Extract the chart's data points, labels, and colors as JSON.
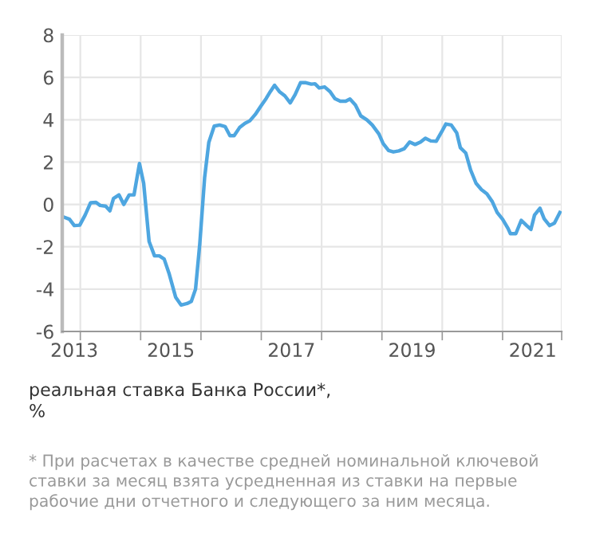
{
  "chart_data": {
    "type": "line",
    "ylabel": "реальная ставка Банка России*,\n%",
    "annotations": [
      "* При расчетах в качестве средней номинальной ключевой ставки за месяц взята усредненная из ставки на первые рабочие дни отчетного и следующего за ним месяца."
    ],
    "x": [
      2013.21,
      2013.32,
      2013.4,
      2013.49,
      2013.58,
      2013.67,
      2013.76,
      2013.83,
      2013.92,
      2013.99,
      2014.05,
      2014.14,
      2014.22,
      2014.31,
      2014.39,
      2014.48,
      2014.55,
      2014.64,
      2014.73,
      2014.81,
      2014.89,
      2014.97,
      2015.08,
      2015.17,
      2015.27,
      2015.34,
      2015.41,
      2015.48,
      2015.56,
      2015.63,
      2015.72,
      2015.81,
      2015.9,
      2015.98,
      2016.05,
      2016.14,
      2016.23,
      2016.31,
      2016.4,
      2016.49,
      2016.58,
      2016.65,
      2016.72,
      2016.8,
      2016.89,
      2016.98,
      2017.06,
      2017.15,
      2017.24,
      2017.33,
      2017.39,
      2017.46,
      2017.55,
      2017.64,
      2017.72,
      2017.81,
      2017.9,
      2017.97,
      2018.06,
      2018.15,
      2018.25,
      2018.34,
      2018.45,
      2018.52,
      2018.61,
      2018.69,
      2018.78,
      2018.87,
      2018.96,
      2019.05,
      2019.14,
      2019.22,
      2019.31,
      2019.4,
      2019.49,
      2019.56,
      2019.65,
      2019.74,
      2019.8,
      2019.89,
      2019.97,
      2020.06,
      2020.15,
      2020.24,
      2020.33,
      2020.41,
      2020.5,
      2020.59,
      2020.63,
      2020.72,
      2020.81,
      2020.9,
      2020.97,
      2021.03,
      2021.12,
      2021.19,
      2021.28,
      2021.36,
      2021.45
    ],
    "series": [
      {
        "color": "#4ea6e0",
        "values": [
          -0.58,
          -0.7,
          -1.0,
          -0.98,
          -0.5,
          0.08,
          0.1,
          -0.05,
          -0.08,
          -0.3,
          0.28,
          0.45,
          0.0,
          0.45,
          0.45,
          1.93,
          1.0,
          -1.75,
          -2.43,
          -2.43,
          -2.58,
          -3.25,
          -4.38,
          -4.75,
          -4.68,
          -4.58,
          -4.0,
          -1.88,
          1.25,
          2.93,
          3.7,
          3.75,
          3.68,
          3.25,
          3.25,
          3.63,
          3.83,
          3.95,
          4.25,
          4.63,
          5.0,
          5.33,
          5.63,
          5.33,
          5.13,
          4.8,
          5.18,
          5.75,
          5.75,
          5.68,
          5.7,
          5.5,
          5.55,
          5.33,
          5.0,
          4.88,
          4.88,
          4.98,
          4.7,
          4.18,
          4.0,
          3.75,
          3.33,
          2.88,
          2.55,
          2.48,
          2.53,
          2.63,
          2.95,
          2.83,
          2.95,
          3.13,
          3.0,
          2.98,
          3.43,
          3.8,
          3.75,
          3.38,
          2.68,
          2.43,
          1.63,
          1.0,
          0.7,
          0.5,
          0.13,
          -0.38,
          -0.7,
          -1.13,
          -1.38,
          -1.38,
          -0.75,
          -1.0,
          -1.18,
          -0.5,
          -0.18,
          -0.68,
          -1.0,
          -0.88,
          -0.38
        ]
      }
    ],
    "xlim": [
      2013.2,
      2021.48
    ],
    "xticks": [
      {
        "value": 2013.4,
        "label": "2013"
      },
      2015,
      2017,
      2019,
      2021,
      {
        "value": 2013.5,
        "label": null
      },
      {
        "value": 2014.5,
        "label": null
      },
      {
        "value": 2015.5,
        "label": null
      },
      {
        "value": 2016.5,
        "label": null
      },
      {
        "value": 2017.5,
        "label": null
      },
      {
        "value": 2018.5,
        "label": null
      },
      {
        "value": 2019.5,
        "label": null
      },
      {
        "value": 2020.5,
        "label": null
      },
      {
        "value": 2021.48,
        "label": null
      }
    ],
    "ylim": [
      -6,
      8
    ],
    "yticks": [
      -6,
      -4,
      -2,
      0,
      2,
      4,
      6,
      8
    ],
    "grid": true,
    "marker": "none",
    "line_style": "solid",
    "legend": false
  }
}
